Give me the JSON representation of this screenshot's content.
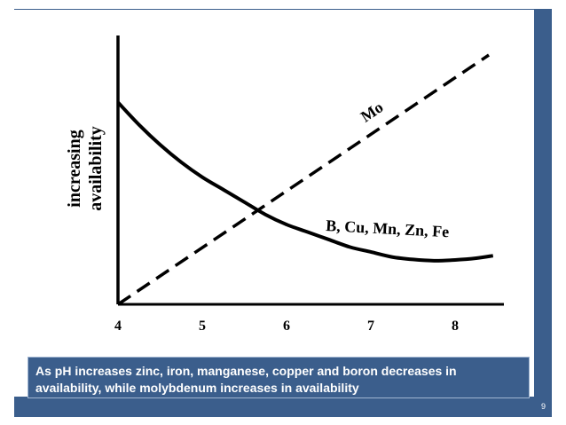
{
  "slide": {
    "caption": " As pH increases zinc, iron, manganese, copper and boron decreases in availability, while molybdenum increases in  availability",
    "page_number": "9",
    "frame_color": "#3b5e8c"
  },
  "chart_data": {
    "type": "line",
    "title": "",
    "xlabel": "",
    "ylabel_lines": [
      "increasing",
      "availability"
    ],
    "x_ticks": [
      "4",
      "5",
      "6",
      "7",
      "8"
    ],
    "xlim": [
      4,
      8.45
    ],
    "ylim": [
      0,
      100
    ],
    "grid": false,
    "legend": "none",
    "series": [
      {
        "name": "Mo",
        "style": "dashed",
        "x": [
          4,
          8.4
        ],
        "y": [
          0,
          100
        ]
      },
      {
        "name": "B, Cu, Mn, Zn, Fe",
        "style": "solid",
        "x": [
          4.0,
          4.25,
          4.5,
          4.75,
          5.0,
          5.25,
          5.5,
          5.75,
          6.0,
          6.25,
          6.5,
          6.75,
          7.0,
          7.25,
          7.5,
          7.75,
          8.0,
          8.25,
          8.45
        ],
        "y": [
          81,
          72,
          64,
          57,
          51,
          46,
          41,
          36,
          32,
          29,
          26,
          23,
          21,
          19,
          18,
          17.5,
          17.8,
          18.5,
          19.5
        ]
      }
    ]
  }
}
